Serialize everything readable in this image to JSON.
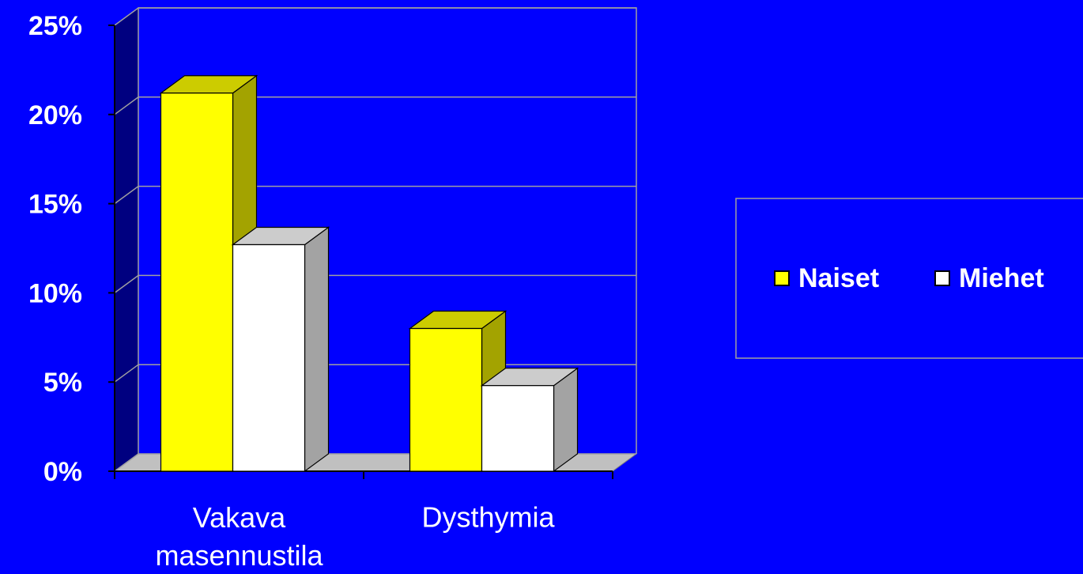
{
  "chart_data": {
    "type": "bar3d",
    "categories": [
      "Vakava masennustila",
      "Dysthymia"
    ],
    "series": [
      {
        "name": "Naiset",
        "color": "#ffff00",
        "values": [
          21.2,
          8.0
        ]
      },
      {
        "name": "Miehet",
        "color": "#ffffff",
        "values": [
          12.7,
          4.8
        ]
      }
    ],
    "ylim": [
      0,
      25
    ],
    "yticks": [
      {
        "value": 0,
        "label": "0%"
      },
      {
        "value": 5,
        "label": "5%"
      },
      {
        "value": 10,
        "label": "10%"
      },
      {
        "value": 15,
        "label": "15%"
      },
      {
        "value": 20,
        "label": "20%"
      },
      {
        "value": 25,
        "label": "25%"
      }
    ],
    "grid": true,
    "legend": "right"
  }
}
